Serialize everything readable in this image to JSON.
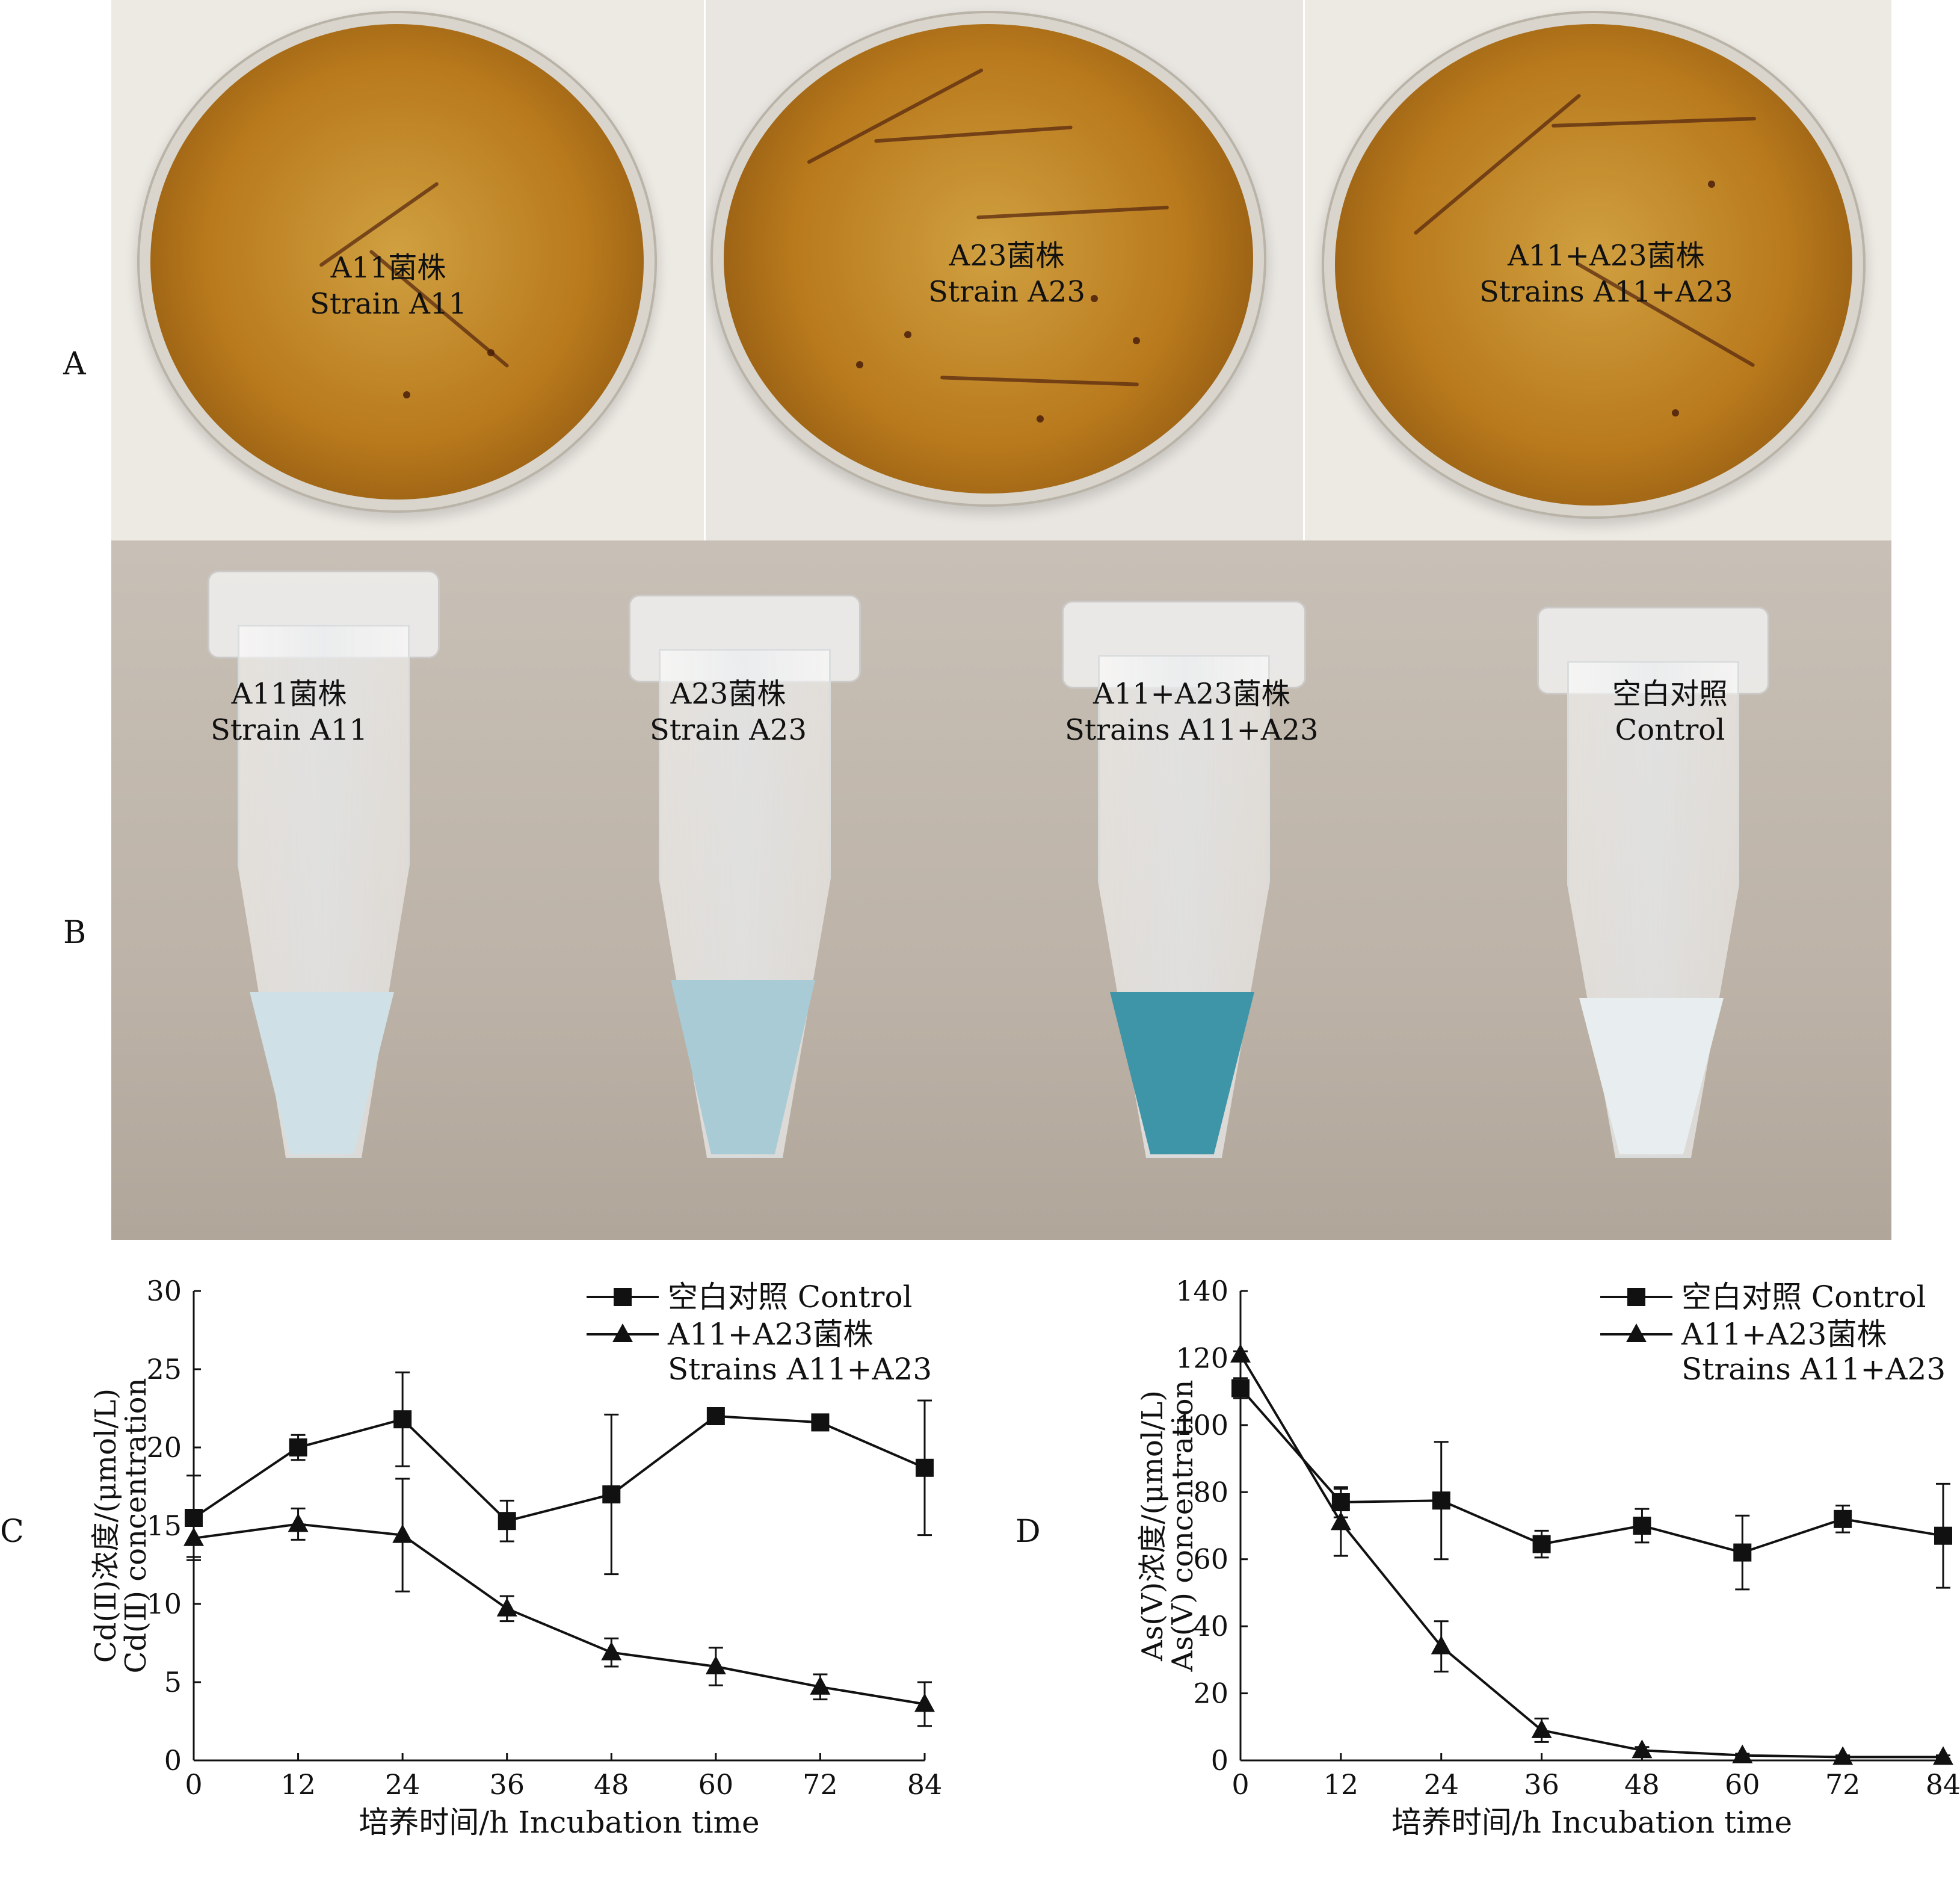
{
  "panel_a": {
    "letter": "A",
    "plates": [
      {
        "cn": "A11菌株",
        "en": "Strain A11"
      },
      {
        "cn": "A23菌株",
        "en": "Strain A23"
      },
      {
        "cn": "A11+A23菌株",
        "en": "Strains A11+A23"
      }
    ]
  },
  "panel_b": {
    "letter": "B",
    "tubes": [
      {
        "cn": "A11菌株",
        "en": "Strain A11",
        "liquid": "#cfe0e6"
      },
      {
        "cn": "A23菌株",
        "en": "Strain A23",
        "liquid": "#a9cbd6"
      },
      {
        "cn": "A11+A23菌株",
        "en": "Strains A11+A23",
        "liquid": "#3f95a8"
      },
      {
        "cn": "空白对照",
        "en": "Control",
        "liquid": "#e8eef0"
      }
    ]
  },
  "chart_data": [
    {
      "panel": "C",
      "type": "line",
      "ylabel_cn": "Cd(Ⅱ)浓度/(μmol/L)",
      "ylabel_en": "Cd(Ⅱ) concentration",
      "xlabel": "培养时间/h  Incubation time",
      "x": [
        0,
        12,
        24,
        36,
        48,
        60,
        72,
        84
      ],
      "xticks": [
        "0",
        "12",
        "24",
        "36",
        "48",
        "60",
        "72",
        "84"
      ],
      "yticks": [
        "0",
        "5",
        "10",
        "15",
        "20",
        "25",
        "30"
      ],
      "ylim": [
        0,
        30
      ],
      "xlim": [
        0,
        84
      ],
      "legend_position": "top-right",
      "series": [
        {
          "name": "空白对照 Control",
          "marker": "square",
          "values": [
            15.5,
            20.0,
            21.8,
            15.3,
            17.0,
            22.0,
            21.6,
            18.7
          ],
          "errors": [
            2.7,
            0.8,
            3.0,
            1.3,
            5.1,
            0.4,
            0.3,
            4.3
          ]
        },
        {
          "name": "A11+A23菌株",
          "name2": "Strains A11+A23",
          "marker": "triangle",
          "values": [
            14.2,
            15.1,
            14.4,
            9.7,
            6.9,
            6.0,
            4.7,
            3.6
          ],
          "errors": [
            1.2,
            1.0,
            3.6,
            0.8,
            0.9,
            1.2,
            0.8,
            1.4
          ]
        }
      ]
    },
    {
      "panel": "D",
      "type": "line",
      "ylabel_cn": "As(Ⅴ)浓度/(μmol/L)",
      "ylabel_en": "As(Ⅴ) concentration",
      "xlabel": "培养时间/h  Incubation time",
      "x": [
        0,
        12,
        24,
        36,
        48,
        60,
        72,
        84
      ],
      "xticks": [
        "0",
        "12",
        "24",
        "36",
        "48",
        "60",
        "72",
        "84"
      ],
      "yticks": [
        "0",
        "20",
        "40",
        "60",
        "80",
        "100",
        "120",
        "140"
      ],
      "ylim": [
        0,
        140
      ],
      "xlim": [
        0,
        84
      ],
      "legend_position": "top-right",
      "series": [
        {
          "name": "空白对照 Control",
          "marker": "square",
          "values": [
            111,
            77,
            77.5,
            64.5,
            70,
            62,
            72,
            67
          ],
          "errors": [
            3,
            4.5,
            17.5,
            4,
            5,
            11,
            4,
            15.5
          ]
        },
        {
          "name": "A11+A23菌株",
          "name2": "Strains A11+A23",
          "marker": "triangle",
          "values": [
            121,
            71,
            34,
            9,
            3,
            1.5,
            1,
            1
          ],
          "errors": [
            1,
            10,
            7.5,
            3.5,
            1,
            0.5,
            0.5,
            0.5
          ]
        }
      ]
    }
  ]
}
